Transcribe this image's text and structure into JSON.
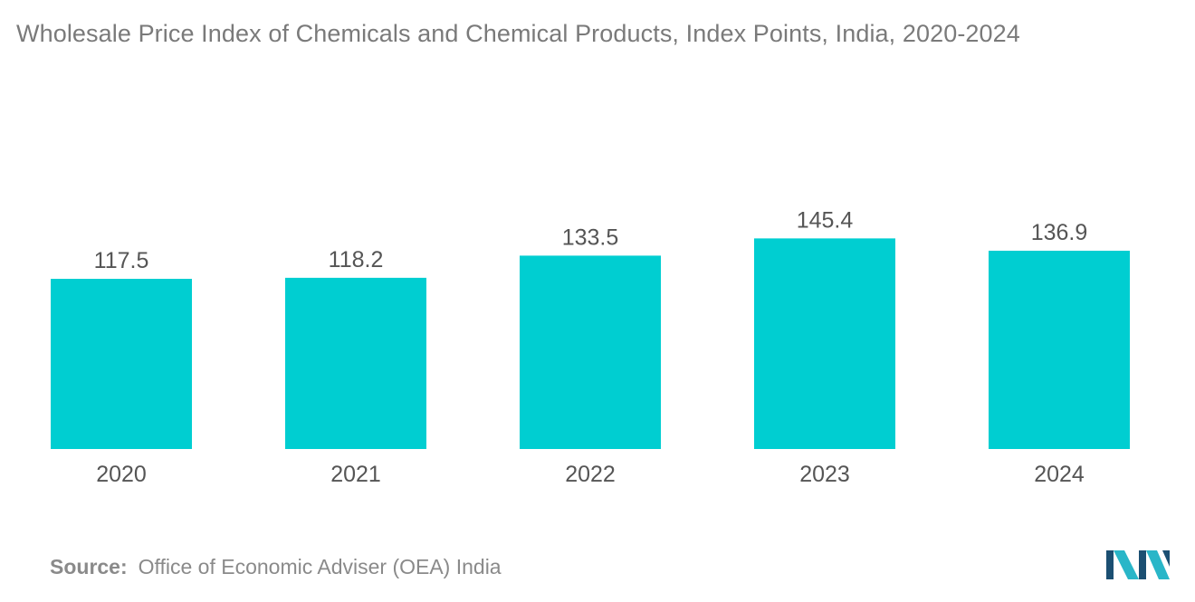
{
  "title": "Wholesale Price Index of Chemicals and Chemical Products, Index Points, India, 2020-2024",
  "source": {
    "label": "Source:",
    "text": "Office of Economic Adviser (OEA) India"
  },
  "logo": {
    "icon": "mordor-intelligence-logo",
    "colors": [
      "#1b4f72",
      "#29b6c8"
    ]
  },
  "colors": {
    "bar": "#00ced1",
    "label": "#555555",
    "title": "#7a7a7a"
  },
  "chart_data": {
    "type": "bar",
    "title": "Wholesale Price Index of Chemicals and Chemical Products, Index Points, India, 2020-2024",
    "categories": [
      "2020",
      "2021",
      "2022",
      "2023",
      "2024"
    ],
    "values": [
      117.5,
      118.2,
      133.5,
      145.4,
      136.9
    ],
    "value_labels": [
      "117.5",
      "118.2",
      "133.5",
      "145.4",
      "136.9"
    ],
    "xlabel": "",
    "ylabel": "",
    "ylim": [
      0,
      160
    ],
    "grid": false,
    "legend": "none"
  }
}
